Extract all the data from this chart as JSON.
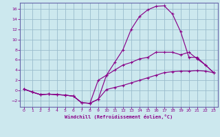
{
  "xlabel": "Windchill (Refroidissement éolien,°C)",
  "bg_color": "#cce8ee",
  "grid_color": "#99bbcc",
  "line_color": "#880088",
  "spine_color": "#6666aa",
  "xlim": [
    -0.5,
    23.5
  ],
  "ylim": [
    -3.2,
    17.2
  ],
  "xticks": [
    0,
    1,
    2,
    3,
    4,
    5,
    6,
    7,
    8,
    9,
    10,
    11,
    12,
    13,
    14,
    15,
    16,
    17,
    18,
    19,
    20,
    21,
    22,
    23
  ],
  "yticks": [
    -2,
    0,
    2,
    4,
    6,
    8,
    10,
    12,
    14,
    16
  ],
  "curve1_x": [
    0,
    1,
    2,
    3,
    4,
    5,
    6,
    7,
    8,
    9,
    10,
    11,
    12,
    13,
    14,
    15,
    16,
    17,
    18,
    19,
    20,
    21,
    22,
    23
  ],
  "curve1_y": [
    0.3,
    -0.3,
    -0.8,
    -0.7,
    -0.8,
    -0.9,
    -1.1,
    -2.4,
    -2.5,
    -1.7,
    3.0,
    5.5,
    8.0,
    12.0,
    14.5,
    15.8,
    16.5,
    16.6,
    15.0,
    11.5,
    6.5,
    6.5,
    5.0,
    3.5
  ],
  "curve2_x": [
    0,
    1,
    2,
    3,
    4,
    5,
    6,
    7,
    8,
    9,
    10,
    11,
    12,
    13,
    14,
    15,
    16,
    17,
    18,
    19,
    20,
    21,
    22,
    23
  ],
  "curve2_y": [
    0.3,
    -0.3,
    -0.8,
    -0.7,
    -0.8,
    -0.9,
    -1.1,
    -2.4,
    -2.5,
    2.0,
    3.0,
    4.0,
    5.0,
    5.5,
    6.2,
    6.5,
    7.5,
    7.5,
    7.5,
    7.0,
    7.5,
    6.2,
    5.0,
    3.5
  ],
  "curve3_x": [
    0,
    1,
    2,
    3,
    4,
    5,
    6,
    7,
    8,
    9,
    10,
    11,
    12,
    13,
    14,
    15,
    16,
    17,
    18,
    19,
    20,
    21,
    22,
    23
  ],
  "curve3_y": [
    0.3,
    -0.3,
    -0.8,
    -0.7,
    -0.8,
    -0.9,
    -1.1,
    -2.4,
    -2.5,
    -1.7,
    0.2,
    0.6,
    1.0,
    1.5,
    2.0,
    2.5,
    3.0,
    3.5,
    3.7,
    3.8,
    3.8,
    3.9,
    3.8,
    3.5
  ]
}
